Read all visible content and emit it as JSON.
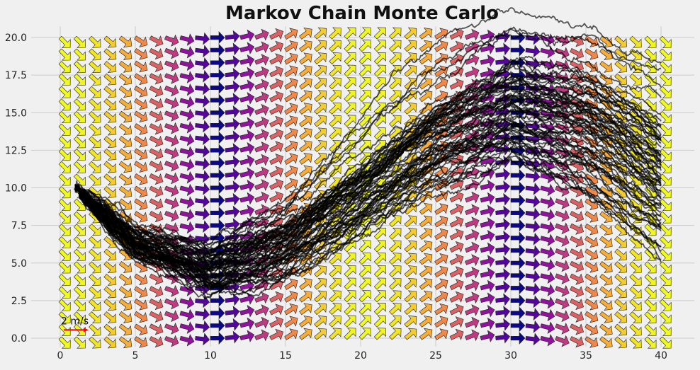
{
  "chart_data": {
    "type": "line",
    "title": "Markov Chain Monte Carlo",
    "xlabel": "",
    "ylabel": "",
    "xlim": [
      -2,
      41
    ],
    "ylim": [
      -0.8,
      21
    ],
    "xticks": [
      0,
      5,
      10,
      15,
      20,
      25,
      30,
      35,
      40
    ],
    "yticks": [
      0.0,
      2.5,
      5.0,
      7.5,
      10.0,
      12.5,
      15.0,
      17.5,
      20.0
    ],
    "ytick_labels": [
      "0.0",
      "2.5",
      "5.0",
      "7.5",
      "10.0",
      "12.5",
      "15.0",
      "17.5",
      "20.0"
    ],
    "grid": true,
    "vector_field": {
      "x_range": [
        0,
        40
      ],
      "y_range": [
        0,
        20
      ],
      "grid_step_x": 1.0,
      "grid_step_y": 0.833,
      "angle_formula": "-0.785*cos(2*pi*x/40)",
      "colormap": "plasma",
      "key_label": "2 m/s",
      "key_color": "#ff0000"
    },
    "trajectories": {
      "count": 70,
      "start": [
        1,
        10
      ],
      "color": "#000000",
      "opacity": 0.65,
      "mean_path": [
        [
          1,
          10
        ],
        [
          5,
          6.2
        ],
        [
          10,
          4.5
        ],
        [
          15,
          6.2
        ],
        [
          20,
          9.5
        ],
        [
          25,
          13.0
        ],
        [
          30,
          15.2
        ],
        [
          35,
          13.8
        ],
        [
          40,
          10.5
        ]
      ],
      "spread_grows_with_x": true
    },
    "key": {
      "label": "2 m/s",
      "x": 0,
      "y": 0.55
    }
  }
}
